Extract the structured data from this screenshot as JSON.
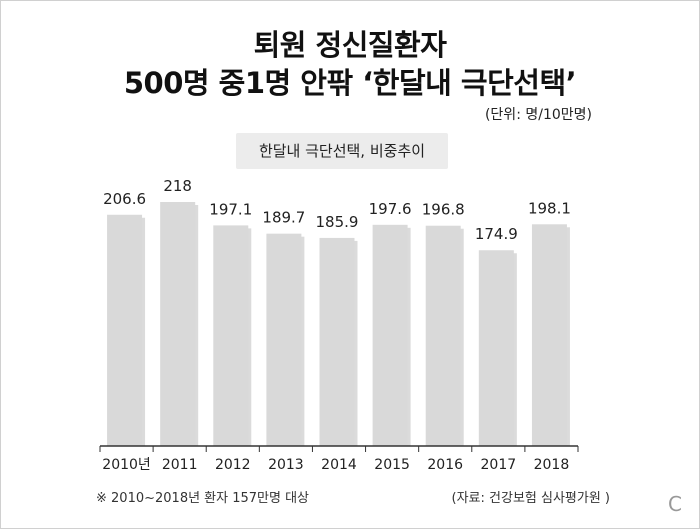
{
  "title_line1": "퇴원 정신질환자",
  "title_line2": "500명 중1명 안팎 ‘한달내 극단선택’",
  "unit": "(단위: 명/10만명)",
  "subtitle": "한달내 극단선택, 비중추이",
  "footnote": "※ 2010~2018년 환자 157만명 대상",
  "source": "(자료: 건강보험 심사평가원 )",
  "corner_mark": "C",
  "colors": {
    "bar": "#d9d9d9",
    "bar_shadow": "#bdbdbd",
    "axis": "#333333",
    "text": "#222222"
  },
  "chart_data": {
    "type": "bar",
    "categories": [
      "2010년",
      "2011",
      "2012",
      "2013",
      "2014",
      "2015",
      "2016",
      "2017",
      "2018"
    ],
    "values": [
      206.6,
      218,
      197.1,
      189.7,
      185.9,
      197.6,
      196.8,
      174.9,
      198.1
    ],
    "value_labels": [
      "206.6",
      "218",
      "197.1",
      "189.7",
      "185.9",
      "197.6",
      "196.8",
      "174.9",
      "198.1"
    ],
    "title": "한달내 극단선택, 비중추이",
    "xlabel": "",
    "ylabel": "",
    "ylim": [
      0,
      218
    ],
    "grid": false,
    "legend": "none"
  }
}
